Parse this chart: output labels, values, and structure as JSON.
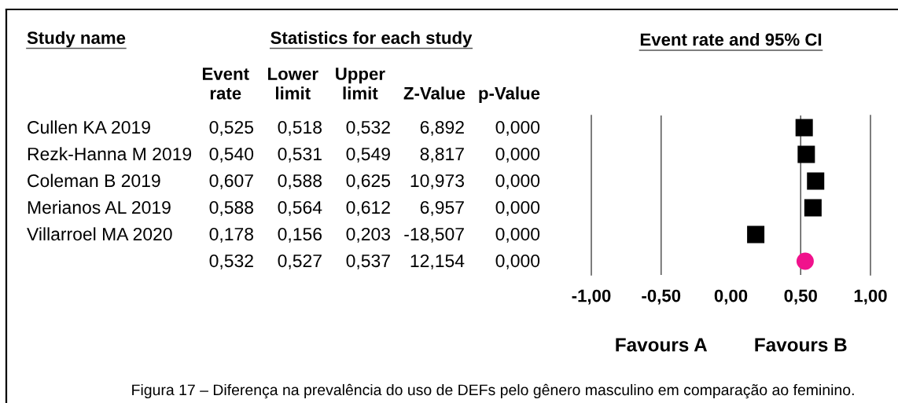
{
  "chart_data": [
    {
      "type": "other",
      "title": "Statistics for each study",
      "ylabel": "Study name",
      "categories": [
        "Event\nrate",
        "Lower\nlimit",
        "Upper\nlimit",
        "Z-Value",
        "p-Value"
      ],
      "y_categories": [
        "Cullen KA 2019",
        "Rezk-Hanna M 2019",
        "Coleman B 2019",
        "Merianos AL 2019",
        "Villarroel MA 2020",
        null
      ],
      "cell_labels": [
        [
          "0,525",
          "0,518",
          "0,532",
          "6,892",
          "0,000"
        ],
        [
          "0,540",
          "0,531",
          "0,549",
          "8,817",
          "0,000"
        ],
        [
          "0,607",
          "0,588",
          "0,625",
          "10,973",
          "0,000"
        ],
        [
          "0,588",
          "0,564",
          "0,612",
          "6,957",
          "0,000"
        ],
        [
          "0,178",
          "0,156",
          "0,203",
          "-18,507",
          "0,000"
        ],
        [
          "0,532",
          "0,527",
          "0,537",
          "12,154",
          "0,000"
        ]
      ],
      "annotations": [
        "Figura 17 – Diferença na prevalência do uso de DEFs pelo gênero masculino em comparação ao feminino."
      ]
    },
    {
      "type": "scatter",
      "orientation": "horizontal",
      "title": "Event rate and 95% CI",
      "categories": [
        null,
        null,
        null,
        null,
        null,
        null
      ],
      "series": [
        {
          "color": "#000000",
          "marker": "square",
          "values": [
            0.525,
            0.54,
            0.607,
            0.588,
            0.178,
            null
          ]
        },
        {
          "color": "#f0128c",
          "marker": "circle",
          "values": [
            null,
            null,
            null,
            null,
            null,
            0.532
          ]
        }
      ],
      "xlim": [
        -1,
        1
      ],
      "xticks": [
        {
          "value": -1,
          "label": "-1,00"
        },
        {
          "value": -0.5,
          "label": "-0,50"
        },
        {
          "value": 0,
          "label": "0,00"
        },
        {
          "value": 0.5,
          "label": "0,50"
        },
        {
          "value": 1,
          "label": "1,00"
        }
      ],
      "ref_lines": [
        {
          "axis": "x",
          "value": -0.5,
          "color": "#555555"
        },
        {
          "axis": "x",
          "value": 0.5,
          "color": "#555555"
        }
      ],
      "annotations": [
        "Favours A",
        "Favours B"
      ]
    }
  ]
}
